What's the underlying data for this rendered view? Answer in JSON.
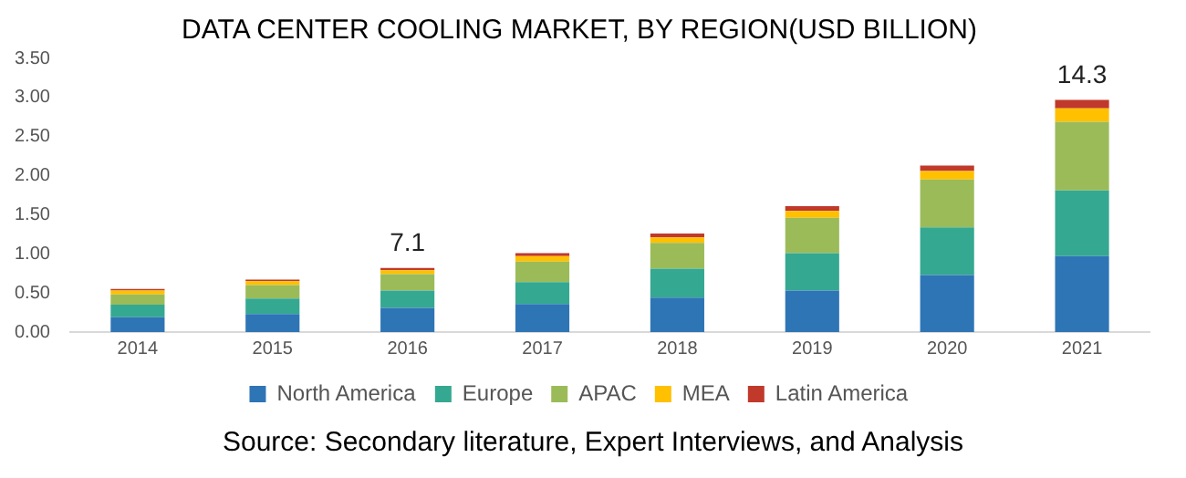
{
  "chart_data": {
    "type": "bar",
    "stacked": true,
    "title": "DATA CENTER COOLING MARKET, BY REGION(USD BILLION)",
    "categories": [
      "2014",
      "2015",
      "2016",
      "2017",
      "2018",
      "2019",
      "2020",
      "2021"
    ],
    "series": [
      {
        "name": "North America",
        "color": "#2e75b6",
        "values": [
          0.19,
          0.23,
          0.31,
          0.36,
          0.44,
          0.53,
          0.73,
          0.97
        ]
      },
      {
        "name": "Europe",
        "color": "#35a891",
        "values": [
          0.16,
          0.2,
          0.22,
          0.28,
          0.37,
          0.48,
          0.61,
          0.84
        ]
      },
      {
        "name": "APAC",
        "color": "#9bbb59",
        "values": [
          0.13,
          0.17,
          0.21,
          0.26,
          0.33,
          0.45,
          0.61,
          0.88
        ]
      },
      {
        "name": "MEA",
        "color": "#ffc000",
        "values": [
          0.05,
          0.05,
          0.05,
          0.07,
          0.07,
          0.09,
          0.11,
          0.17
        ]
      },
      {
        "name": "Latin America",
        "color": "#c0392b",
        "values": [
          0.02,
          0.02,
          0.03,
          0.04,
          0.05,
          0.06,
          0.07,
          0.11
        ]
      }
    ],
    "ylim": [
      0,
      3.5
    ],
    "yticks": [
      {
        "value": 0,
        "label": "0.00"
      },
      {
        "value": 0.5,
        "label": "0.50"
      },
      {
        "value": 1,
        "label": "1.00"
      },
      {
        "value": 1.5,
        "label": "1.50"
      },
      {
        "value": 2,
        "label": "2.00"
      },
      {
        "value": 2.5,
        "label": "2.50"
      },
      {
        "value": 3,
        "label": "3.00"
      },
      {
        "value": 3.5,
        "label": "3.50"
      }
    ],
    "grid": false,
    "legend": "bottom",
    "annotations": [
      {
        "text": "7.1",
        "x": "2016",
        "y": 0.82
      },
      {
        "text": "14.3",
        "x": "2021",
        "y": 2.97
      },
      "Source: Secondary literature, Expert Interviews, and Analysis"
    ]
  }
}
